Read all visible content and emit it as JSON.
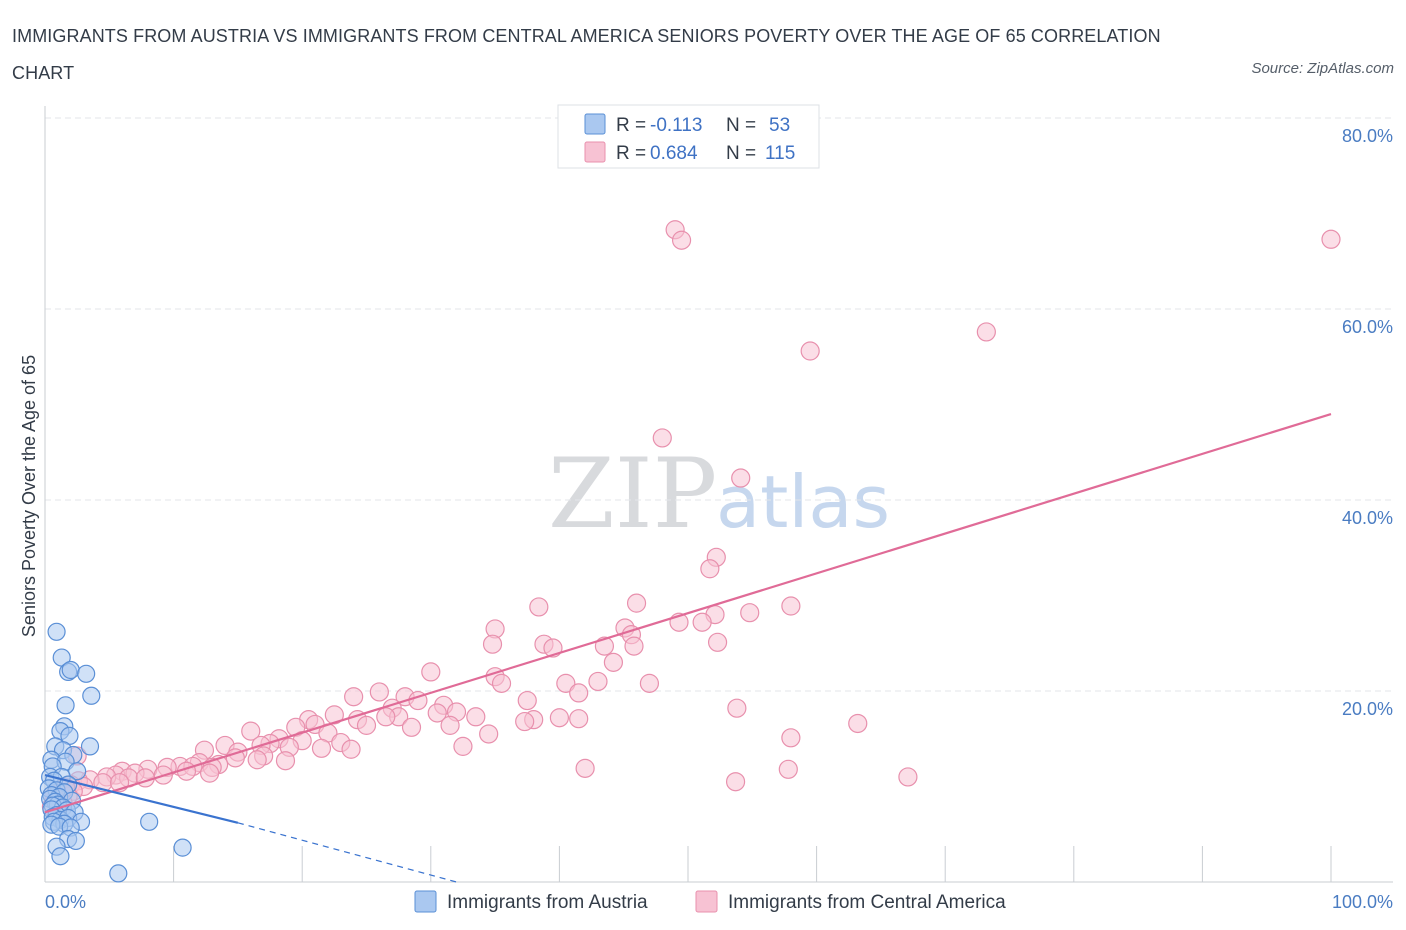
{
  "title": "IMMIGRANTS FROM AUSTRIA VS IMMIGRANTS FROM CENTRAL AMERICA SENIORS POVERTY OVER THE AGE OF 65 CORRELATION CHART",
  "source": "Source: ZipAtlas.com",
  "watermark": {
    "zip": "ZIP",
    "atlas": "atlas"
  },
  "colors": {
    "austria_fill": "#aac8f0",
    "austria_stroke": "#5a8fd6",
    "austria_line": "#3a73cf",
    "central_fill": "#f7c2d3",
    "central_stroke": "#e890ad",
    "central_line": "#e06b97",
    "axis_text": "#4a7cc2",
    "grid": "#e3e6ea"
  },
  "legend": {
    "r_label": "R =",
    "n_label": "N =",
    "items": [
      {
        "r": "-0.113",
        "n": "53"
      },
      {
        "r": "0.684",
        "n": "115"
      }
    ]
  },
  "chart_data": {
    "type": "scatter",
    "title": "IMMIGRANTS FROM AUSTRIA VS IMMIGRANTS FROM CENTRAL AMERICA SENIORS POVERTY OVER THE AGE OF 65 CORRELATION CHART",
    "xlabel": "",
    "ylabel": "Seniors Poverty Over the Age of 65",
    "xlim": [
      0,
      100
    ],
    "ylim": [
      0,
      80
    ],
    "x_tick_labels": [
      "0.0%",
      "100.0%"
    ],
    "y_ticks": [
      20,
      40,
      60,
      80
    ],
    "y_tick_labels": [
      "20.0%",
      "40.0%",
      "60.0%",
      "80.0%"
    ],
    "grid": true,
    "legend_position": "top-center",
    "series": [
      {
        "name": "Immigrants from Austria",
        "r": -0.113,
        "n": 53,
        "trend": {
          "x": [
            0,
            15
          ],
          "y": [
            11.2,
            6.2
          ]
        },
        "trend_extension": {
          "x": [
            15,
            32
          ],
          "y": [
            6.2,
            0.0
          ]
        },
        "points": [
          [
            0.9,
            26.2
          ],
          [
            1.3,
            23.5
          ],
          [
            1.8,
            22.0
          ],
          [
            2.0,
            22.2
          ],
          [
            3.2,
            21.8
          ],
          [
            3.6,
            19.5
          ],
          [
            1.6,
            18.5
          ],
          [
            1.5,
            16.3
          ],
          [
            1.2,
            15.8
          ],
          [
            1.9,
            15.3
          ],
          [
            0.8,
            14.2
          ],
          [
            1.4,
            13.8
          ],
          [
            3.5,
            14.2
          ],
          [
            2.2,
            13.3
          ],
          [
            0.5,
            12.8
          ],
          [
            1.6,
            12.6
          ],
          [
            0.6,
            12.1
          ],
          [
            2.5,
            11.6
          ],
          [
            0.4,
            11.0
          ],
          [
            1.3,
            11.0
          ],
          [
            0.7,
            10.6
          ],
          [
            1.8,
            10.2
          ],
          [
            0.3,
            9.8
          ],
          [
            0.9,
            9.6
          ],
          [
            1.5,
            9.4
          ],
          [
            0.5,
            9.1
          ],
          [
            1.1,
            8.9
          ],
          [
            0.4,
            8.7
          ],
          [
            0.8,
            8.4
          ],
          [
            2.1,
            8.5
          ],
          [
            1.0,
            8.1
          ],
          [
            0.6,
            8.0
          ],
          [
            1.4,
            7.8
          ],
          [
            0.5,
            7.6
          ],
          [
            1.7,
            7.5
          ],
          [
            2.3,
            7.3
          ],
          [
            0.9,
            7.0
          ],
          [
            0.6,
            6.8
          ],
          [
            1.2,
            6.5
          ],
          [
            1.8,
            6.7
          ],
          [
            0.7,
            6.3
          ],
          [
            2.8,
            6.3
          ],
          [
            1.5,
            6.1
          ],
          [
            0.5,
            6.0
          ],
          [
            1.1,
            5.8
          ],
          [
            2.0,
            5.7
          ],
          [
            8.1,
            6.3
          ],
          [
            1.8,
            4.5
          ],
          [
            2.4,
            4.3
          ],
          [
            0.9,
            3.7
          ],
          [
            10.7,
            3.6
          ],
          [
            1.2,
            2.7
          ],
          [
            5.7,
            0.9
          ]
        ]
      },
      {
        "name": "Immigrants from Central America",
        "r": 0.684,
        "n": 115,
        "trend": {
          "x": [
            0,
            100
          ],
          "y": [
            7.3,
            49.0
          ]
        },
        "points": [
          [
            49.0,
            68.3
          ],
          [
            49.5,
            67.2
          ],
          [
            100.0,
            67.3
          ],
          [
            73.2,
            57.6
          ],
          [
            59.5,
            55.6
          ],
          [
            48.0,
            46.5
          ],
          [
            54.1,
            42.3
          ],
          [
            52.2,
            34.0
          ],
          [
            51.7,
            32.8
          ],
          [
            38.4,
            28.8
          ],
          [
            46.0,
            29.2
          ],
          [
            58.0,
            28.9
          ],
          [
            52.1,
            28.0
          ],
          [
            54.8,
            28.2
          ],
          [
            49.3,
            27.2
          ],
          [
            51.1,
            27.2
          ],
          [
            35.0,
            26.5
          ],
          [
            45.1,
            26.6
          ],
          [
            45.6,
            25.9
          ],
          [
            34.8,
            24.9
          ],
          [
            38.8,
            24.9
          ],
          [
            43.5,
            24.7
          ],
          [
            45.8,
            24.7
          ],
          [
            52.3,
            25.1
          ],
          [
            39.5,
            24.5
          ],
          [
            44.2,
            23.0
          ],
          [
            30.0,
            22.0
          ],
          [
            35.0,
            21.5
          ],
          [
            43.0,
            21.0
          ],
          [
            47.0,
            20.8
          ],
          [
            35.5,
            20.8
          ],
          [
            40.5,
            20.8
          ],
          [
            41.5,
            19.8
          ],
          [
            37.5,
            19.0
          ],
          [
            26.0,
            19.9
          ],
          [
            28.0,
            19.4
          ],
          [
            24.0,
            19.4
          ],
          [
            29.0,
            19.0
          ],
          [
            31.0,
            18.5
          ],
          [
            27.0,
            18.2
          ],
          [
            32.0,
            17.8
          ],
          [
            22.5,
            17.5
          ],
          [
            30.5,
            17.7
          ],
          [
            27.5,
            17.3
          ],
          [
            33.5,
            17.3
          ],
          [
            38.0,
            17.0
          ],
          [
            40.0,
            17.2
          ],
          [
            41.5,
            17.1
          ],
          [
            20.5,
            17.0
          ],
          [
            24.3,
            17.0
          ],
          [
            26.5,
            17.3
          ],
          [
            37.3,
            16.8
          ],
          [
            21.0,
            16.5
          ],
          [
            25.0,
            16.4
          ],
          [
            28.5,
            16.2
          ],
          [
            31.5,
            16.4
          ],
          [
            34.5,
            15.5
          ],
          [
            53.8,
            18.2
          ],
          [
            63.2,
            16.6
          ],
          [
            58.0,
            15.1
          ],
          [
            19.5,
            16.2
          ],
          [
            16.0,
            15.8
          ],
          [
            22.0,
            15.6
          ],
          [
            18.2,
            15.0
          ],
          [
            20.0,
            14.8
          ],
          [
            23.0,
            14.6
          ],
          [
            17.5,
            14.5
          ],
          [
            14.0,
            14.3
          ],
          [
            16.8,
            14.3
          ],
          [
            19.0,
            14.1
          ],
          [
            21.5,
            14.0
          ],
          [
            23.8,
            13.9
          ],
          [
            32.5,
            14.2
          ],
          [
            12.4,
            13.8
          ],
          [
            15.0,
            13.6
          ],
          [
            17.0,
            13.2
          ],
          [
            14.8,
            13.0
          ],
          [
            16.5,
            12.8
          ],
          [
            18.7,
            12.7
          ],
          [
            12.0,
            12.5
          ],
          [
            13.5,
            12.3
          ],
          [
            10.5,
            12.1
          ],
          [
            11.5,
            12.1
          ],
          [
            13.0,
            12.0
          ],
          [
            9.5,
            12.0
          ],
          [
            8.0,
            11.8
          ],
          [
            11.0,
            11.6
          ],
          [
            6.0,
            11.6
          ],
          [
            7.0,
            11.4
          ],
          [
            9.2,
            11.2
          ],
          [
            5.5,
            11.2
          ],
          [
            4.8,
            11.0
          ],
          [
            6.5,
            10.9
          ],
          [
            7.8,
            10.9
          ],
          [
            12.8,
            11.4
          ],
          [
            3.5,
            10.7
          ],
          [
            4.5,
            10.4
          ],
          [
            5.8,
            10.4
          ],
          [
            2.6,
            10.6
          ],
          [
            2.0,
            10.2
          ],
          [
            3.0,
            10.0
          ],
          [
            1.5,
            9.8
          ],
          [
            2.2,
            9.5
          ],
          [
            1.0,
            9.3
          ],
          [
            1.8,
            9.0
          ],
          [
            0.8,
            8.7
          ],
          [
            1.4,
            8.3
          ],
          [
            0.5,
            7.9
          ],
          [
            2.5,
            13.2
          ],
          [
            42.0,
            11.9
          ],
          [
            57.8,
            11.8
          ],
          [
            67.1,
            11.0
          ],
          [
            53.7,
            10.5
          ],
          [
            1.6,
            9.9
          ],
          [
            0.7,
            9.0
          ]
        ]
      }
    ]
  },
  "bottom_legend": [
    "Immigrants from Austria",
    "Immigrants from Central America"
  ]
}
